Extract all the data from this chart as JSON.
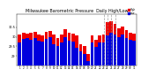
{
  "title": "Milwaukee Barometric Pressure  Daily High/Low",
  "title_fontsize": 3.5,
  "ylim": [
    28.5,
    31.2
  ],
  "yticks": [
    29.0,
    29.5,
    30.0,
    30.5
  ],
  "ytick_labels": [
    "29",
    "29.5",
    "30",
    "30.5"
  ],
  "bar_width": 0.45,
  "background_color": "#ffffff",
  "high_color": "#ee0000",
  "low_color": "#0000dd",
  "days": [
    1,
    2,
    3,
    4,
    5,
    6,
    7,
    8,
    9,
    10,
    11,
    12,
    13,
    14,
    15,
    16,
    17,
    18,
    19,
    20,
    21,
    22,
    23,
    24,
    25,
    26,
    27,
    28,
    29,
    30,
    31
  ],
  "highs": [
    30.1,
    30.2,
    30.18,
    30.22,
    30.25,
    30.12,
    30.08,
    30.28,
    30.32,
    30.1,
    29.92,
    30.12,
    30.38,
    30.22,
    30.18,
    30.05,
    29.62,
    29.52,
    29.1,
    30.05,
    29.82,
    30.08,
    30.12,
    30.78,
    30.82,
    30.68,
    30.45,
    30.55,
    30.35,
    30.22,
    30.18
  ],
  "lows": [
    29.72,
    29.88,
    29.92,
    29.82,
    29.95,
    29.8,
    29.75,
    29.9,
    29.98,
    29.62,
    29.52,
    29.72,
    29.98,
    29.8,
    29.75,
    29.42,
    29.22,
    29.12,
    28.72,
    29.68,
    29.48,
    29.72,
    29.68,
    30.08,
    30.22,
    30.12,
    29.98,
    30.12,
    29.92,
    29.82,
    29.78
  ],
  "dashed_cols": [
    23,
    24,
    25,
    26
  ],
  "legend_high": "High",
  "legend_low": "Low"
}
